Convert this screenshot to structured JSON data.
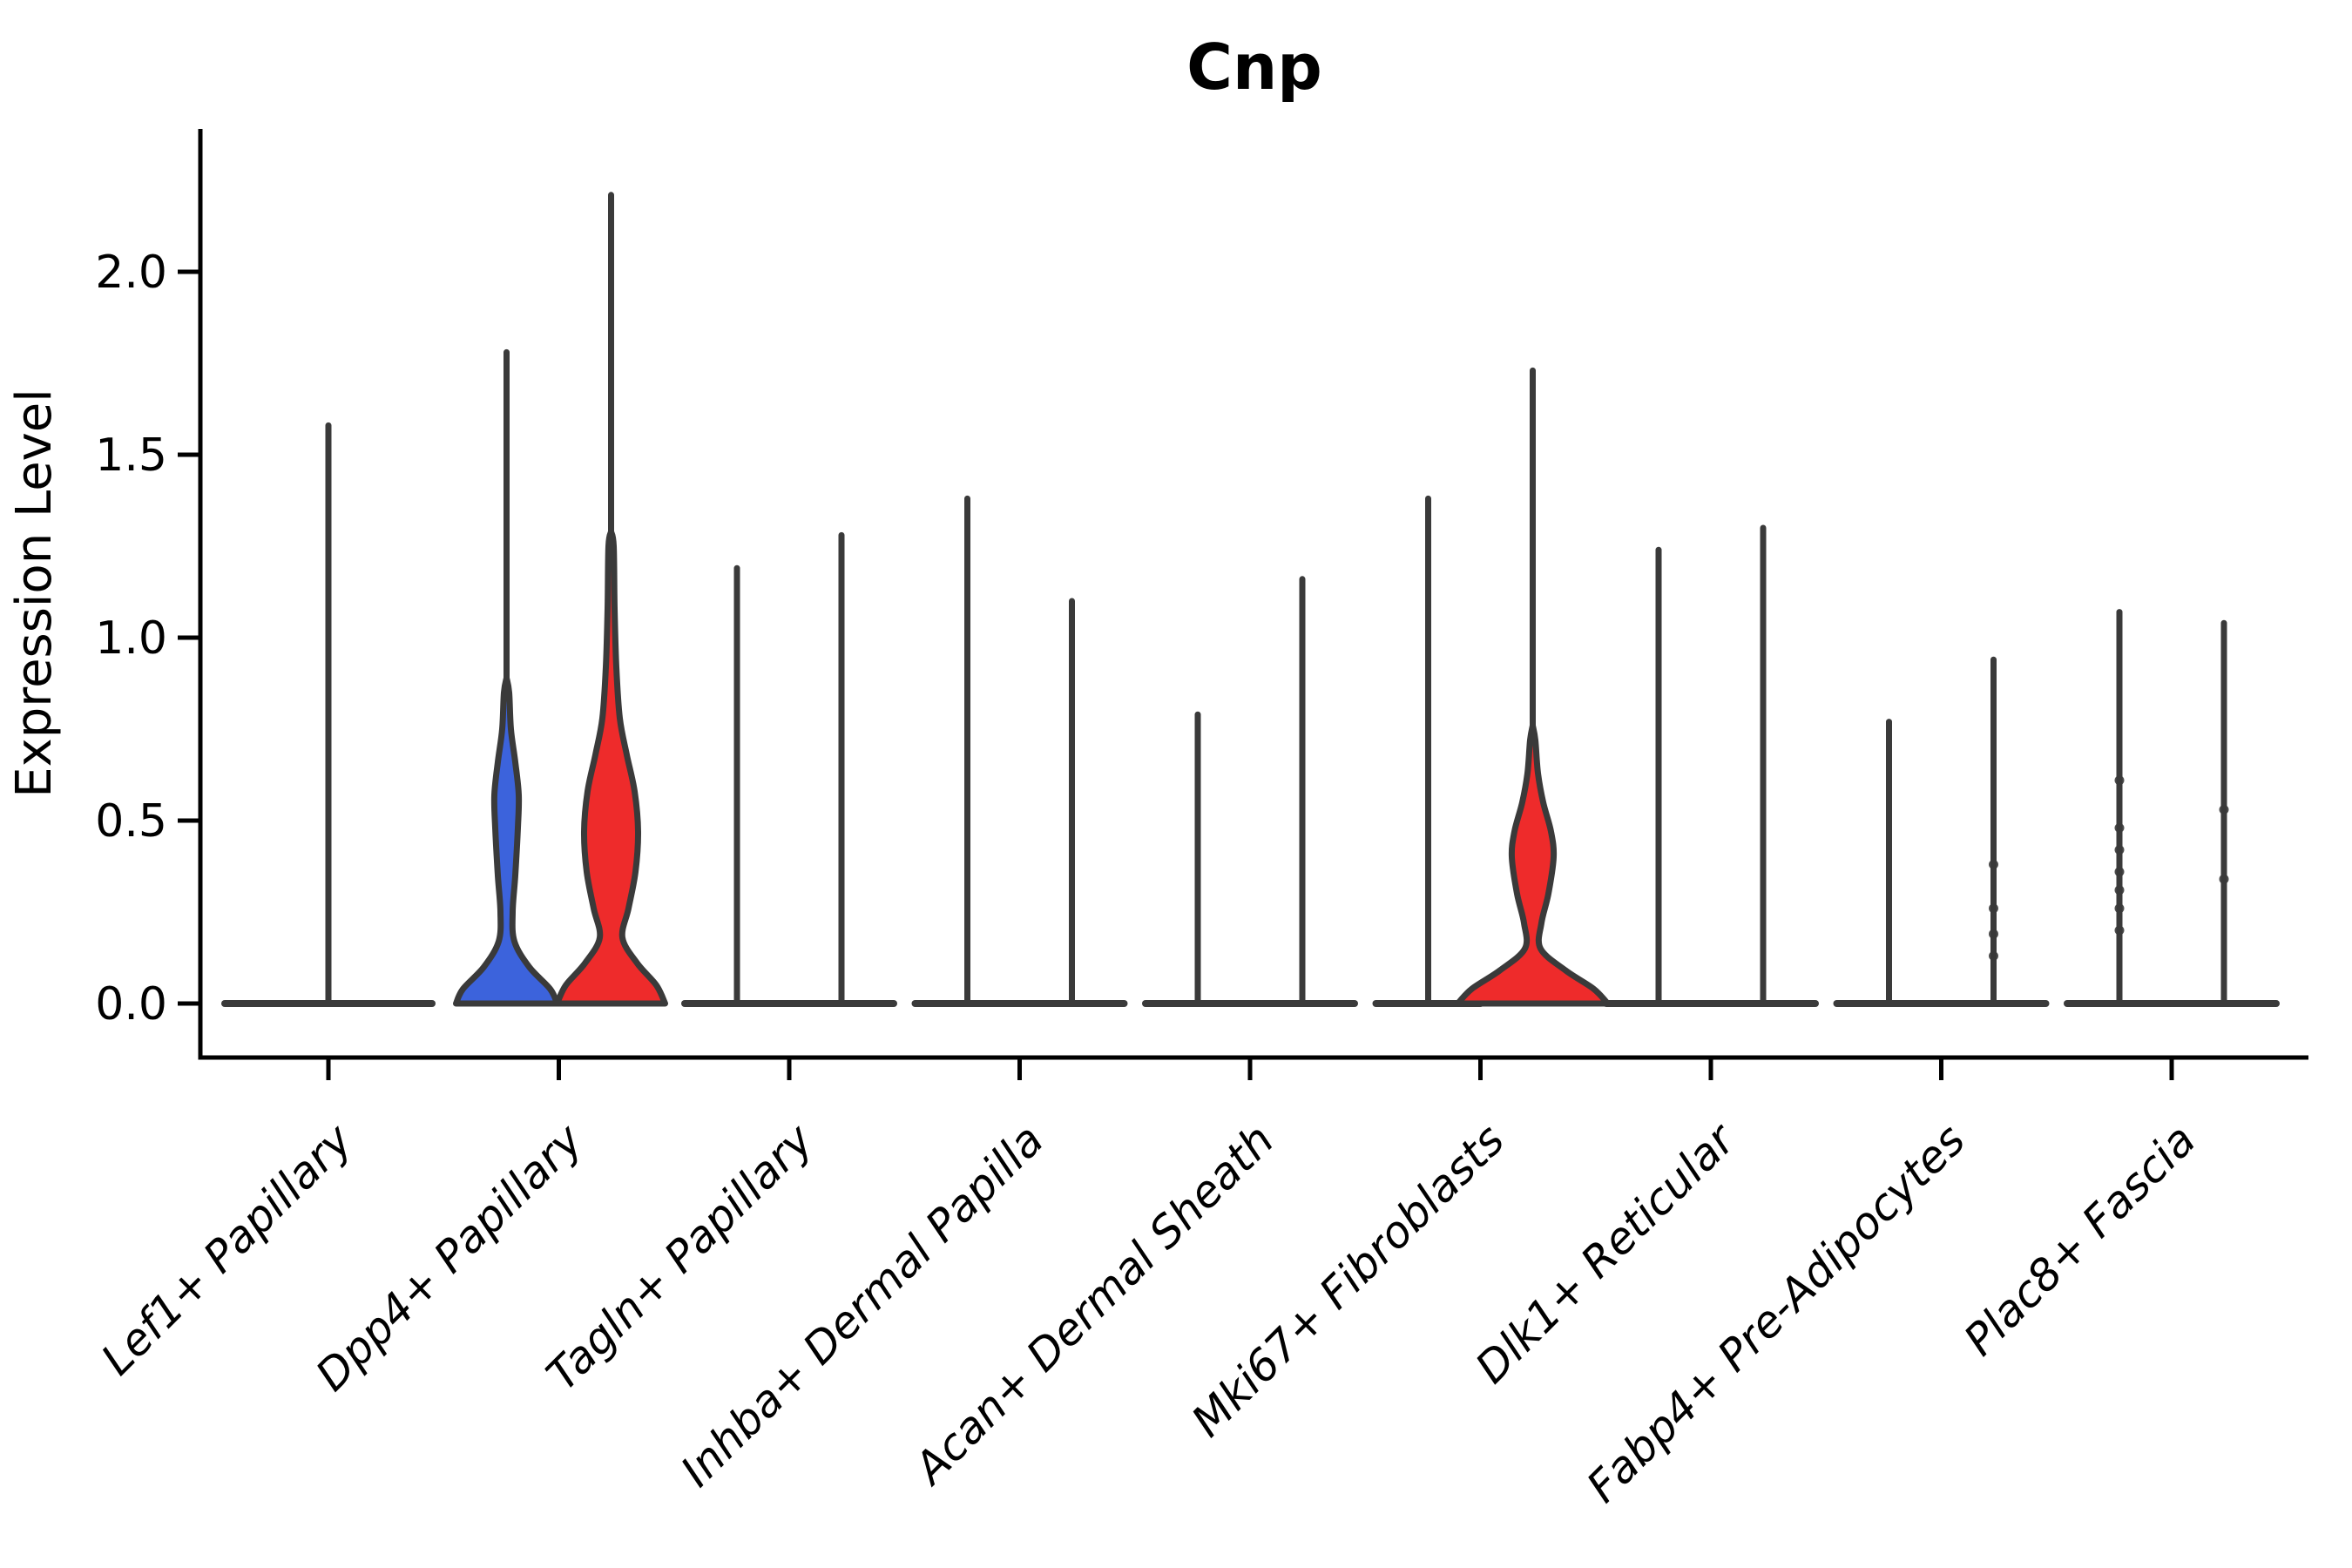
{
  "title": "Cnp",
  "chart_data": {
    "type": "violin",
    "title": "Cnp",
    "ylabel": "Expression Level",
    "xlabel": "",
    "ytick_labels": [
      "0.0",
      "0.5",
      "1.0",
      "1.5",
      "2.0"
    ],
    "ytick_values": [
      0.0,
      0.5,
      1.0,
      1.5,
      2.0
    ],
    "ylim": [
      -0.15,
      2.39
    ],
    "grid": "off",
    "legend": "none",
    "background_color": "#ffffff",
    "axis_color": "#000000",
    "outline_color": "#3a3a3a",
    "group_colors": {
      "left": "#3c63dc",
      "right": "#ee2b2b"
    },
    "categories": [
      "Lef1+ Papillary",
      "Dpp4+ Papillary",
      "Tagln+ Papillary",
      "Inhba+ Dermal Papilla",
      "Acan+ Dermal Sheath",
      "Mki67+ Fibroblasts",
      "Dlk1+ Reticular",
      "Fabp4+ Pre-Adipocytes",
      "Plac8+ Fascia"
    ],
    "series": [
      {
        "category": "Lef1+ Papillary",
        "violins": [
          {
            "group": "single",
            "fill": null,
            "max": 1.58,
            "body": null,
            "jitter_values": []
          }
        ]
      },
      {
        "category": "Dpp4+ Papillary",
        "violins": [
          {
            "group": "left",
            "fill": "#3c63dc",
            "max": 1.78,
            "body": [
              [
                0,
                58
              ],
              [
                0.04,
                50
              ],
              [
                0.1,
                26
              ],
              [
                0.17,
                9
              ],
              [
                0.25,
                7
              ],
              [
                0.35,
                10
              ],
              [
                0.48,
                13
              ],
              [
                0.57,
                14
              ],
              [
                0.66,
                10
              ],
              [
                0.75,
                5
              ],
              [
                0.85,
                3
              ]
            ],
            "jitter_values": []
          },
          {
            "group": "right",
            "fill": "#ee2b2b",
            "max": 2.21,
            "body": [
              [
                0,
                62
              ],
              [
                0.05,
                52
              ],
              [
                0.11,
                30
              ],
              [
                0.18,
                13
              ],
              [
                0.26,
                20
              ],
              [
                0.36,
                28
              ],
              [
                0.47,
                31
              ],
              [
                0.58,
                27
              ],
              [
                0.68,
                18
              ],
              [
                0.78,
                10
              ],
              [
                0.92,
                6
              ],
              [
                1.08,
                4
              ],
              [
                1.25,
                3
              ]
            ],
            "jitter_values": []
          }
        ]
      },
      {
        "category": "Tagln+ Papillary",
        "violins": [
          {
            "group": "left",
            "fill": null,
            "max": 1.19,
            "body": null,
            "jitter_values": []
          },
          {
            "group": "right",
            "fill": null,
            "max": 1.28,
            "body": null,
            "jitter_values": []
          }
        ]
      },
      {
        "category": "Inhba+ Dermal Papilla",
        "violins": [
          {
            "group": "left",
            "fill": null,
            "max": 1.38,
            "body": null,
            "jitter_values": []
          },
          {
            "group": "right",
            "fill": null,
            "max": 1.1,
            "body": null,
            "jitter_values": []
          }
        ]
      },
      {
        "category": "Acan+ Dermal Sheath",
        "violins": [
          {
            "group": "left",
            "fill": null,
            "max": 0.79,
            "body": null,
            "jitter_values": []
          },
          {
            "group": "right",
            "fill": null,
            "max": 1.16,
            "body": null,
            "jitter_values": []
          }
        ]
      },
      {
        "category": "Mki67+ Fibroblasts",
        "violins": [
          {
            "group": "left",
            "fill": null,
            "max": 1.38,
            "body": null,
            "jitter_values": []
          },
          {
            "group": "right",
            "fill": "#ee2b2b",
            "max": 1.73,
            "body": [
              [
                0,
                86
              ],
              [
                0.04,
                70
              ],
              [
                0.09,
                38
              ],
              [
                0.15,
                9
              ],
              [
                0.22,
                10
              ],
              [
                0.3,
                18
              ],
              [
                0.4,
                24
              ],
              [
                0.47,
                21
              ],
              [
                0.55,
                12
              ],
              [
                0.63,
                6
              ],
              [
                0.72,
                3
              ]
            ],
            "jitter_values": []
          }
        ]
      },
      {
        "category": "Dlk1+ Reticular",
        "violins": [
          {
            "group": "left",
            "fill": null,
            "max": 1.24,
            "body": null,
            "jitter_values": []
          },
          {
            "group": "right",
            "fill": null,
            "max": 1.3,
            "body": null,
            "jitter_values": []
          }
        ]
      },
      {
        "category": "Fabp4+ Pre-Adipocytes",
        "violins": [
          {
            "group": "left",
            "fill": null,
            "max": 0.77,
            "body": null,
            "jitter_values": []
          },
          {
            "group": "right",
            "fill": null,
            "max": 0.94,
            "body": null,
            "jitter_values": [
              0.38,
              0.26,
              0.19,
              0.13
            ]
          }
        ]
      },
      {
        "category": "Plac8+ Fascia",
        "violins": [
          {
            "group": "left",
            "fill": null,
            "max": 1.07,
            "body": null,
            "jitter_values": [
              0.61,
              0.48,
              0.42,
              0.36,
              0.31,
              0.26,
              0.2
            ]
          },
          {
            "group": "right",
            "fill": null,
            "max": 1.04,
            "body": null,
            "jitter_values": [
              0.53,
              0.34
            ]
          }
        ]
      }
    ]
  }
}
